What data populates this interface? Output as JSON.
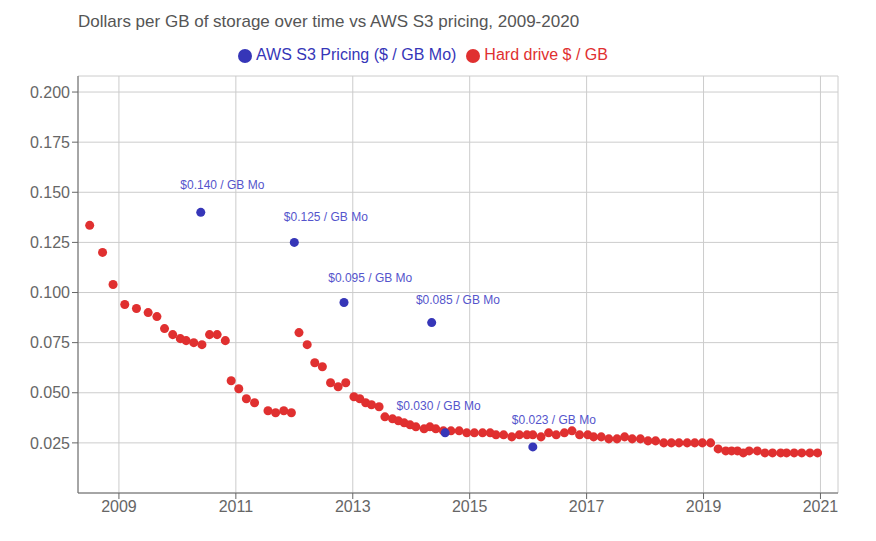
{
  "chart_data": {
    "type": "scatter",
    "title": "Dollars per GB of storage over time vs AWS S3 pricing, 2009-2020",
    "series": [
      {
        "name": "Hard drive $ / GB",
        "color": "#e03030",
        "x": [
          2008.5,
          2008.72,
          2008.9,
          2009.1,
          2009.3,
          2009.5,
          2009.65,
          2009.78,
          2009.92,
          2010.05,
          2010.15,
          2010.28,
          2010.42,
          2010.55,
          2010.68,
          2010.82,
          2010.92,
          2011.05,
          2011.18,
          2011.32,
          2011.55,
          2011.68,
          2011.82,
          2011.95,
          2012.08,
          2012.22,
          2012.35,
          2012.48,
          2012.62,
          2012.75,
          2012.88,
          2013.02,
          2013.12,
          2013.22,
          2013.32,
          2013.45,
          2013.55,
          2013.68,
          2013.78,
          2013.88,
          2013.98,
          2014.08,
          2014.22,
          2014.32,
          2014.42,
          2014.55,
          2014.68,
          2014.82,
          2014.95,
          2015.08,
          2015.22,
          2015.35,
          2015.45,
          2015.58,
          2015.72,
          2015.85,
          2015.98,
          2016.08,
          2016.22,
          2016.35,
          2016.48,
          2016.62,
          2016.75,
          2016.88,
          2017.02,
          2017.12,
          2017.25,
          2017.38,
          2017.52,
          2017.65,
          2017.78,
          2017.92,
          2018.05,
          2018.18,
          2018.32,
          2018.45,
          2018.58,
          2018.72,
          2018.85,
          2018.98,
          2019.12,
          2019.25,
          2019.38,
          2019.48,
          2019.58,
          2019.68,
          2019.78,
          2019.92,
          2020.05,
          2020.18,
          2020.32,
          2020.42,
          2020.55,
          2020.68,
          2020.82,
          2020.95
        ],
        "values": [
          0.1335,
          0.12,
          0.104,
          0.094,
          0.092,
          0.09,
          0.088,
          0.082,
          0.079,
          0.077,
          0.076,
          0.075,
          0.074,
          0.079,
          0.079,
          0.076,
          0.056,
          0.052,
          0.047,
          0.045,
          0.041,
          0.04,
          0.041,
          0.04,
          0.08,
          0.074,
          0.065,
          0.063,
          0.055,
          0.053,
          0.055,
          0.048,
          0.047,
          0.045,
          0.044,
          0.043,
          0.038,
          0.037,
          0.036,
          0.035,
          0.034,
          0.033,
          0.032,
          0.033,
          0.032,
          0.031,
          0.031,
          0.031,
          0.03,
          0.03,
          0.03,
          0.03,
          0.029,
          0.029,
          0.028,
          0.029,
          0.029,
          0.029,
          0.028,
          0.03,
          0.029,
          0.03,
          0.031,
          0.029,
          0.029,
          0.028,
          0.028,
          0.027,
          0.027,
          0.028,
          0.027,
          0.027,
          0.026,
          0.026,
          0.025,
          0.025,
          0.025,
          0.025,
          0.025,
          0.025,
          0.025,
          0.022,
          0.021,
          0.021,
          0.021,
          0.02,
          0.021,
          0.021,
          0.02,
          0.02,
          0.02,
          0.02,
          0.02,
          0.02,
          0.02,
          0.02
        ]
      },
      {
        "name": "AWS S3 Pricing ($ / GB Mo)",
        "color": "#3636b8",
        "x": [
          2010.4,
          2012.0,
          2012.85,
          2014.35,
          2014.58,
          2016.08
        ],
        "values": [
          0.14,
          0.125,
          0.095,
          0.085,
          0.03,
          0.023
        ]
      }
    ],
    "annotations": [
      {
        "text": "$0.140 / GB Mo",
        "x": 2010.05,
        "y": 0.15,
        "color": "#5555cc"
      },
      {
        "text": "$0.125 / GB Mo",
        "x": 2011.82,
        "y": 0.134,
        "color": "#5555cc"
      },
      {
        "text": "$0.095 / GB Mo",
        "x": 2012.58,
        "y": 0.104,
        "color": "#5555cc"
      },
      {
        "text": "$0.085 / GB Mo",
        "x": 2014.08,
        "y": 0.093,
        "color": "#5555cc"
      },
      {
        "text": "$0.030 / GB Mo",
        "x": 2013.75,
        "y": 0.04,
        "color": "#5555cc"
      },
      {
        "text": "$0.023 / GB Mo",
        "x": 2015.72,
        "y": 0.033,
        "color": "#5555cc"
      }
    ],
    "xlim": [
      2008.3,
      2021.3
    ],
    "ylim": [
      0.0,
      0.208
    ],
    "xticks": [
      2009,
      2011,
      2013,
      2015,
      2017,
      2019,
      2021
    ],
    "yticks": [
      0.025,
      {
        "value": 0.05,
        "label": "0.050"
      },
      0.075,
      {
        "value": 0.1,
        "label": "0.100"
      },
      0.125,
      {
        "value": 0.15,
        "label": "0.150"
      },
      0.175,
      {
        "value": 0.2,
        "label": "0.200"
      }
    ],
    "grid": true,
    "legend": "top"
  }
}
